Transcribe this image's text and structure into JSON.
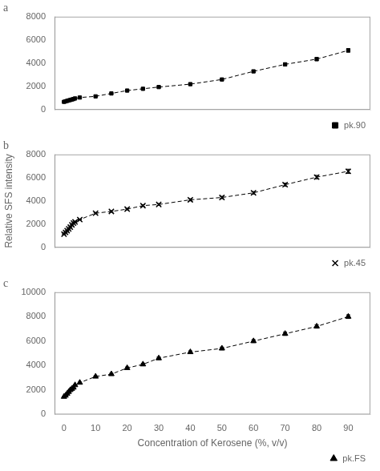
{
  "chart_data": [
    {
      "type": "line",
      "title": "a",
      "x": [
        0.0,
        0.5,
        1.0,
        1.5,
        2.0,
        2.5,
        3.0,
        3.5,
        5.0,
        10,
        15,
        20,
        25,
        30,
        40,
        50,
        60,
        70,
        80,
        90
      ],
      "series": [
        {
          "name": "pk.90",
          "color": "black",
          "marker": "square",
          "line_style": "dashed",
          "values": [
            680,
            720,
            760,
            800,
            840,
            880,
            920,
            970,
            1050,
            1150,
            1400,
            1650,
            1800,
            1950,
            2200,
            2600,
            3300,
            3900,
            4350,
            5100
          ],
          "yerr": [
            20,
            20,
            20,
            20,
            20,
            20,
            20,
            20,
            25,
            30,
            40,
            50,
            55,
            60,
            70,
            80,
            100,
            120,
            130,
            150
          ]
        }
      ],
      "xlim": [
        -3,
        97
      ],
      "xticks": [
        0,
        10,
        20,
        30,
        40,
        50,
        60,
        70,
        80,
        90
      ],
      "ylim": [
        0,
        8000
      ],
      "yticks": [
        0,
        2000,
        4000,
        6000,
        8000
      ],
      "grid": false,
      "legend": "lower right",
      "tick_labels": "y"
    },
    {
      "type": "line",
      "title": "b",
      "ylabel": "Relative SFS intensity",
      "x": [
        0.0,
        0.5,
        1.0,
        1.5,
        2.0,
        2.5,
        3.0,
        3.5,
        5.0,
        10,
        15,
        20,
        25,
        30,
        40,
        50,
        60,
        70,
        80,
        90
      ],
      "series": [
        {
          "name": "pk.45",
          "color": "black",
          "marker": "x",
          "line_style": "dashed",
          "values": [
            1150,
            1300,
            1450,
            1600,
            1750,
            1950,
            2100,
            2200,
            2400,
            2950,
            3100,
            3300,
            3600,
            3700,
            4100,
            4300,
            4700,
            5400,
            6050,
            6550
          ],
          "yerr": [
            30,
            30,
            30,
            30,
            30,
            30,
            30,
            30,
            40,
            60,
            70,
            70,
            80,
            80,
            90,
            100,
            110,
            130,
            150,
            180
          ]
        }
      ],
      "xlim": [
        -3,
        97
      ],
      "xticks": [
        0,
        10,
        20,
        30,
        40,
        50,
        60,
        70,
        80,
        90
      ],
      "ylim": [
        0,
        8000
      ],
      "yticks": [
        0,
        2000,
        4000,
        6000,
        8000
      ],
      "grid": false,
      "legend": "lower right",
      "tick_labels": "y"
    },
    {
      "type": "line",
      "title": "c",
      "xlabel": "Concentration of Kerosene (%, v/v)",
      "x": [
        0.0,
        0.5,
        1.0,
        1.5,
        2.0,
        2.5,
        3.0,
        3.5,
        5.0,
        10,
        15,
        20,
        25,
        30,
        40,
        50,
        60,
        70,
        80,
        90
      ],
      "series": [
        {
          "name": "pk.FS",
          "color": "black",
          "marker": "triangle",
          "line_style": "dashed",
          "values": [
            1450,
            1550,
            1700,
            1850,
            2000,
            2100,
            2200,
            2400,
            2600,
            3100,
            3300,
            3800,
            4100,
            4600,
            5100,
            5400,
            6000,
            6600,
            7200,
            8000
          ],
          "yerr": [
            30,
            30,
            30,
            30,
            30,
            30,
            30,
            30,
            40,
            60,
            70,
            80,
            90,
            100,
            100,
            110,
            120,
            130,
            140,
            150
          ]
        }
      ],
      "xlim": [
        -3,
        97
      ],
      "xticks": [
        0,
        10,
        20,
        30,
        40,
        50,
        60,
        70,
        80,
        90
      ],
      "ylim": [
        0,
        10000
      ],
      "yticks": [
        0,
        2000,
        4000,
        6000,
        8000,
        10000
      ],
      "grid": false,
      "legend": "lower right"
    }
  ]
}
